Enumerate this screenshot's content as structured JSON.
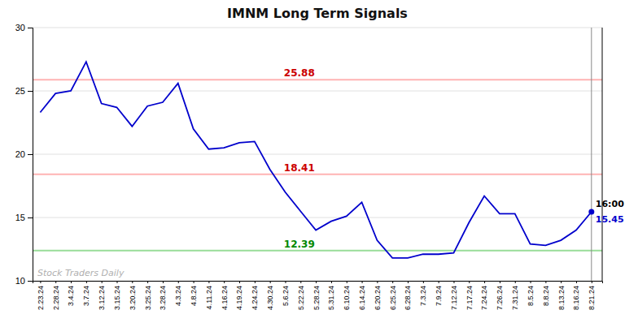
{
  "chart_data": {
    "type": "line",
    "title": "IMNM Long Term Signals",
    "categories": [
      "2.23.24",
      "2.28.24",
      "3.4.24",
      "3.7.24",
      "3.12.24",
      "3.15.24",
      "3.20.24",
      "3.25.24",
      "3.28.24",
      "4.3.24",
      "4.8.24",
      "4.11.24",
      "4.16.24",
      "4.19.24",
      "4.24.24",
      "4.30.24",
      "5.6.24",
      "5.22.24",
      "5.28.24",
      "5.31.24",
      "6.10.24",
      "6.14.24",
      "6.20.24",
      "6.25.24",
      "6.28.24",
      "7.3.24",
      "7.9.24",
      "7.12.24",
      "7.17.24",
      "7.24.24",
      "7.26.24",
      "7.31.24",
      "8.5.24",
      "8.8.24",
      "8.13.24",
      "8.16.24",
      "8.21.24"
    ],
    "values": [
      23.3,
      24.8,
      25.0,
      27.3,
      24.0,
      23.7,
      22.2,
      23.8,
      24.1,
      25.6,
      22.0,
      20.4,
      20.5,
      20.9,
      21.0,
      18.8,
      17.0,
      15.5,
      14.0,
      14.7,
      15.1,
      16.2,
      13.2,
      11.8,
      11.8,
      12.1,
      12.1,
      12.2,
      14.6,
      16.7,
      15.3,
      15.3,
      12.9,
      12.8,
      13.2,
      14.0,
      15.45
    ],
    "color": "#0000cc",
    "hlines": [
      {
        "value": 25.88,
        "color": "#ffb3b3",
        "label_color": "#cc0000"
      },
      {
        "value": 18.41,
        "color": "#ffb3b3",
        "label_color": "#cc0000"
      },
      {
        "value": 12.39,
        "color": "#99dd99",
        "label_color": "#008800"
      }
    ],
    "last_price": 15.45,
    "last_time": "16:00",
    "watermark": "Stock Traders Daily",
    "ylim": [
      10,
      30
    ],
    "yticks": [
      10,
      15,
      20,
      25,
      30
    ],
    "grid": true
  }
}
